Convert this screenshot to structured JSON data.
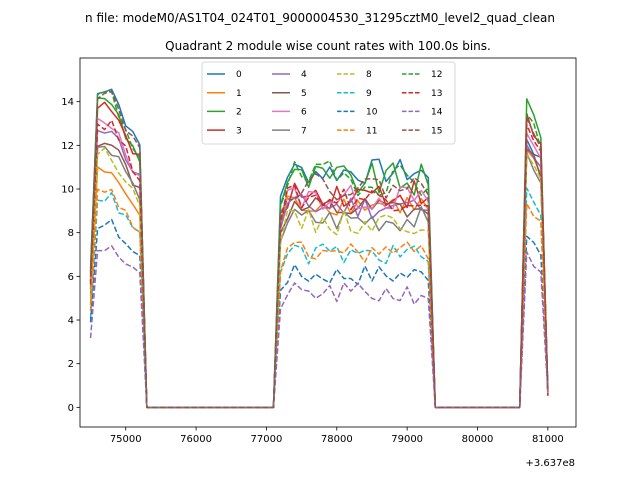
{
  "chart_data": {
    "type": "line",
    "suptitle": "n file: modeM0/AS1T04_024T01_9000004530_31295cztM0_level2_quad_clean",
    "title": "Quadrant 2 module wise count rates with 100.0s bins.",
    "xlabel": "",
    "ylabel": "",
    "x_offset_label": "+3.637e8",
    "xlim": [
      74350,
      81400
    ],
    "ylim": [
      -0.9,
      16.0
    ],
    "x_ticks": [
      75000,
      76000,
      77000,
      78000,
      79000,
      80000,
      81000
    ],
    "x_tick_labels": [
      "75000",
      "76000",
      "77000",
      "78000",
      "79000",
      "80000",
      "81000"
    ],
    "y_ticks": [
      0,
      2,
      4,
      6,
      8,
      10,
      12,
      14
    ],
    "y_tick_labels": [
      "0",
      "2",
      "4",
      "6",
      "8",
      "10",
      "12",
      "14"
    ],
    "legend": {
      "location": "upper center",
      "columns": 4
    },
    "x_segments": [
      {
        "start": 74500,
        "count": 9
      },
      {
        "start": 75400,
        "count": 17
      },
      {
        "start": 77100,
        "count": 23
      },
      {
        "start": 79400,
        "count": 12
      },
      {
        "start": 80600,
        "count": 5
      }
    ],
    "series": [
      {
        "name": "0",
        "color": "#1f77b4",
        "style": "solid",
        "a": 14.6,
        "b": 10.8,
        "c": 12.4,
        "e": 0.6
      },
      {
        "name": "1",
        "color": "#ff7f0e",
        "style": "solid",
        "a": 10.8,
        "b": 9.3,
        "c": 11.8,
        "e": 0.5
      },
      {
        "name": "2",
        "color": "#2ca02c",
        "style": "solid",
        "a": 14.0,
        "b": 10.4,
        "c": 14.0,
        "e": 0.8
      },
      {
        "name": "3",
        "color": "#d62728",
        "style": "solid",
        "a": 13.7,
        "b": 9.8,
        "c": 13.2,
        "e": 0.7
      },
      {
        "name": "4",
        "color": "#9467bd",
        "style": "solid",
        "a": 12.8,
        "b": 9.2,
        "c": 12.3,
        "e": 0.6
      },
      {
        "name": "5",
        "color": "#8c564b",
        "style": "solid",
        "a": 12.2,
        "b": 9.0,
        "c": 12.0,
        "e": 0.6
      },
      {
        "name": "6",
        "color": "#e377c2",
        "style": "solid",
        "a": 13.0,
        "b": 9.6,
        "c": 12.6,
        "e": 0.6
      },
      {
        "name": "7",
        "color": "#7f7f7f",
        "style": "solid",
        "a": 11.8,
        "b": 8.6,
        "c": 11.6,
        "e": 0.6
      },
      {
        "name": "8",
        "color": "#bcbd22",
        "style": "dashed",
        "a": 11.6,
        "b": 8.5,
        "c": 11.4,
        "e": 0.6
      },
      {
        "name": "9",
        "color": "#17becf",
        "style": "dashed",
        "a": 9.6,
        "b": 7.0,
        "c": 9.8,
        "e": 0.5
      },
      {
        "name": "10",
        "color": "#1f77b4",
        "style": "dashed",
        "a": 8.4,
        "b": 6.1,
        "c": 8.0,
        "e": 0.5
      },
      {
        "name": "11",
        "color": "#ff7f0e",
        "style": "dashed",
        "a": 9.8,
        "b": 7.1,
        "c": 9.4,
        "e": 0.5
      },
      {
        "name": "12",
        "color": "#2ca02c",
        "style": "dashed",
        "a": 14.2,
        "b": 10.5,
        "c": 13.4,
        "e": 0.8
      },
      {
        "name": "13",
        "color": "#d62728",
        "style": "dashed",
        "a": 13.0,
        "b": 9.6,
        "c": 12.8,
        "e": 0.6
      },
      {
        "name": "14",
        "color": "#9467bd",
        "style": "dashed",
        "a": 7.3,
        "b": 5.2,
        "c": 6.9,
        "e": 0.5
      },
      {
        "name": "15",
        "color": "#8c564b",
        "style": "dashed",
        "a": 14.4,
        "b": 10.1,
        "c": 13.5,
        "e": 0.6
      }
    ]
  }
}
